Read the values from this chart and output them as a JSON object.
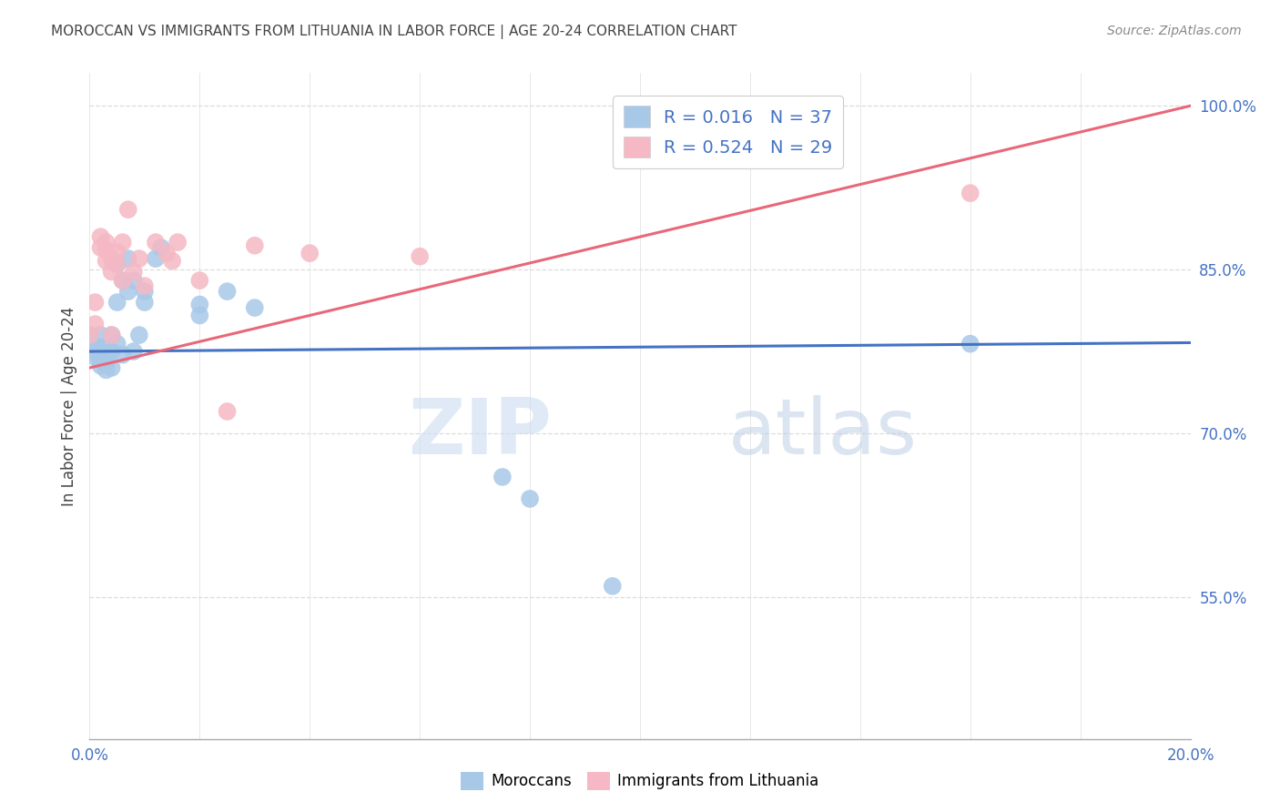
{
  "title": "MOROCCAN VS IMMIGRANTS FROM LITHUANIA IN LABOR FORCE | AGE 20-24 CORRELATION CHART",
  "source": "Source: ZipAtlas.com",
  "ylabel": "In Labor Force | Age 20-24",
  "ytick_labels": [
    "100.0%",
    "85.0%",
    "70.0%",
    "55.0%"
  ],
  "watermark_zip": "ZIP",
  "watermark_atlas": "atlas",
  "blue_color": "#a8c8e8",
  "pink_color": "#f5b8c4",
  "blue_line_color": "#4472c4",
  "pink_line_color": "#e8687a",
  "legend_text_color": "#4472c4",
  "axis_color": "#4472c4",
  "title_color": "#444444",
  "source_color": "#888888",
  "grid_color": "#dddddd",
  "blue_x": [
    0.0,
    0.001,
    0.001,
    0.001,
    0.002,
    0.002,
    0.002,
    0.002,
    0.003,
    0.003,
    0.003,
    0.003,
    0.004,
    0.004,
    0.004,
    0.005,
    0.005,
    0.005,
    0.006,
    0.006,
    0.007,
    0.007,
    0.008,
    0.008,
    0.009,
    0.01,
    0.01,
    0.012,
    0.013,
    0.02,
    0.02,
    0.025,
    0.03,
    0.075,
    0.08,
    0.095,
    0.16
  ],
  "blue_y": [
    0.79,
    0.78,
    0.775,
    0.77,
    0.775,
    0.768,
    0.762,
    0.79,
    0.78,
    0.772,
    0.765,
    0.758,
    0.79,
    0.775,
    0.76,
    0.855,
    0.82,
    0.782,
    0.84,
    0.772,
    0.86,
    0.83,
    0.84,
    0.775,
    0.79,
    0.83,
    0.82,
    0.86,
    0.87,
    0.818,
    0.808,
    0.83,
    0.815,
    0.66,
    0.64,
    0.56,
    0.782
  ],
  "pink_x": [
    0.0,
    0.001,
    0.001,
    0.002,
    0.002,
    0.003,
    0.003,
    0.003,
    0.004,
    0.004,
    0.004,
    0.005,
    0.005,
    0.006,
    0.006,
    0.007,
    0.008,
    0.009,
    0.01,
    0.012,
    0.014,
    0.015,
    0.016,
    0.02,
    0.025,
    0.03,
    0.04,
    0.06,
    0.16
  ],
  "pink_y": [
    0.79,
    0.8,
    0.82,
    0.88,
    0.87,
    0.875,
    0.868,
    0.858,
    0.86,
    0.848,
    0.79,
    0.866,
    0.855,
    0.875,
    0.84,
    0.905,
    0.848,
    0.86,
    0.835,
    0.875,
    0.865,
    0.858,
    0.875,
    0.84,
    0.72,
    0.872,
    0.865,
    0.862,
    0.92
  ],
  "blue_line_x": [
    0.0,
    0.2
  ],
  "blue_line_y": [
    0.775,
    0.783
  ],
  "pink_line_x": [
    0.0,
    0.2
  ],
  "pink_line_y": [
    0.76,
    1.0
  ],
  "xlim": [
    0.0,
    0.2
  ],
  "ylim": [
    0.42,
    1.03
  ],
  "yticks": [
    1.0,
    0.85,
    0.7,
    0.55
  ],
  "xticks": [
    0.0,
    0.02,
    0.04,
    0.06,
    0.08,
    0.1,
    0.12,
    0.14,
    0.16,
    0.18,
    0.2
  ],
  "legend_blue_label": "R = 0.016   N = 37",
  "legend_pink_label": "R = 0.524   N = 29",
  "bottom_legend_blue": "Moroccans",
  "bottom_legend_pink": "Immigrants from Lithuania"
}
